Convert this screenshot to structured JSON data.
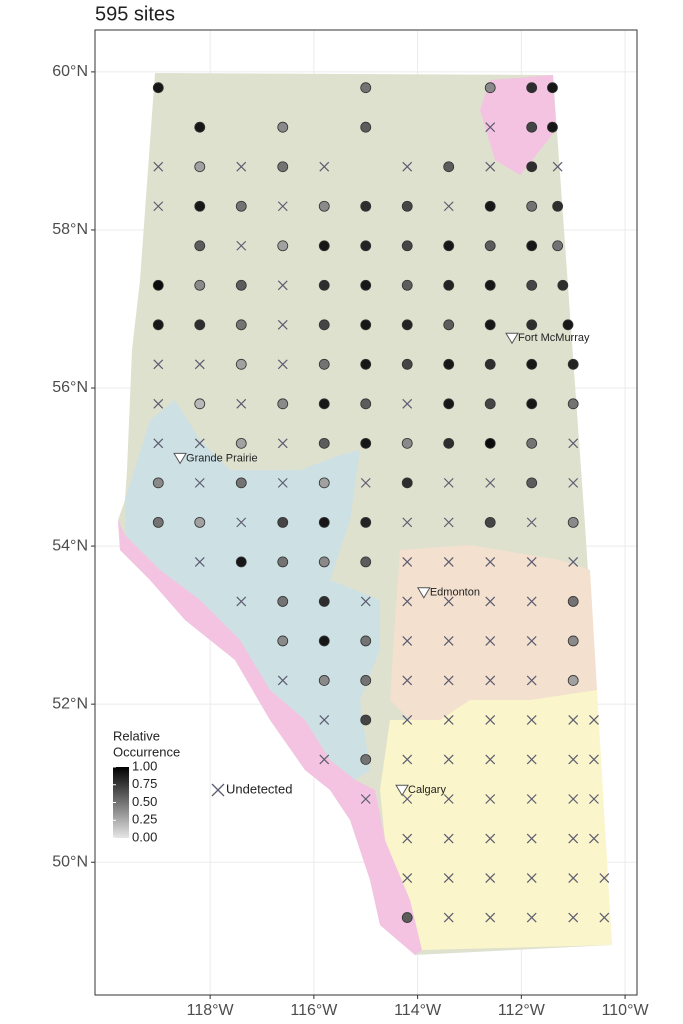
{
  "chart_data": {
    "type": "map",
    "title": "595 sites",
    "xlim": [
      -120.22,
      -109.77
    ],
    "ylim": [
      48.32,
      60.53
    ],
    "xticks": [
      {
        "value": -118,
        "label": "118°W"
      },
      {
        "value": -116,
        "label": "116°W"
      },
      {
        "value": -114,
        "label": "114°W"
      },
      {
        "value": -112,
        "label": "112°W"
      },
      {
        "value": -110,
        "label": "110°W"
      }
    ],
    "yticks": [
      {
        "value": 50,
        "label": "50°N"
      },
      {
        "value": 52,
        "label": "52°N"
      },
      {
        "value": 54,
        "label": "54°N"
      },
      {
        "value": 56,
        "label": "56°N"
      },
      {
        "value": 58,
        "label": "58°N"
      },
      {
        "value": 60,
        "label": "60°N"
      }
    ],
    "grid": true,
    "legend": {
      "title": [
        "Relative",
        "Occurrence"
      ],
      "ticks": [
        {
          "value": 1,
          "label": "1.00"
        },
        {
          "value": 0.75,
          "label": "0.75"
        },
        {
          "value": 0.5,
          "label": "0.50"
        },
        {
          "value": 0.25,
          "label": "0.25"
        },
        {
          "value": 0,
          "label": "0.00"
        }
      ],
      "colors": [
        "#e6e6e6",
        "#000000"
      ]
    },
    "detected": {
      "lon": [
        -119.0,
        -115.0,
        -112.6,
        -111.8,
        -111.4,
        -118.2,
        -116.6,
        -115.0,
        -111.8,
        -111.4,
        -118.2,
        -116.6,
        -113.4,
        -111.8,
        -118.2,
        -117.4,
        -115.8,
        -115.0,
        -114.2,
        -112.6,
        -111.8,
        -111.3,
        -118.2,
        -116.6,
        -115.8,
        -115.0,
        -114.2,
        -113.4,
        -112.6,
        -111.8,
        -111.3,
        -119.0,
        -118.2,
        -117.4,
        -115.8,
        -115.0,
        -114.2,
        -113.4,
        -112.6,
        -111.8,
        -111.2,
        -119.0,
        -118.2,
        -117.4,
        -115.8,
        -115.0,
        -114.2,
        -113.4,
        -112.6,
        -111.8,
        -111.1,
        -117.4,
        -115.8,
        -115.0,
        -114.2,
        -113.4,
        -112.6,
        -111.8,
        -111.0,
        -118.2,
        -116.6,
        -115.8,
        -115.0,
        -113.4,
        -112.6,
        -111.8,
        -111.0,
        -117.4,
        -115.8,
        -115.0,
        -114.2,
        -113.4,
        -112.6,
        -111.8,
        -119.0,
        -117.4,
        -115.8,
        -114.2,
        -111.8,
        -119.0,
        -118.2,
        -116.6,
        -115.8,
        -115.0,
        -112.6,
        -111.0,
        -117.4,
        -116.6,
        -115.8,
        -115.0,
        -116.6,
        -115.8,
        -111.0,
        -116.6,
        -115.8,
        -115.0,
        -111.0,
        -115.8,
        -115.0,
        -111.0,
        -115.0,
        -115.0,
        -114.2
      ],
      "lat": [
        59.8,
        59.8,
        59.8,
        59.8,
        59.8,
        59.3,
        59.3,
        59.3,
        59.3,
        59.3,
        58.8,
        58.8,
        58.8,
        58.8,
        58.3,
        58.3,
        58.3,
        58.3,
        58.3,
        58.3,
        58.3,
        58.3,
        57.8,
        57.8,
        57.8,
        57.8,
        57.8,
        57.8,
        57.8,
        57.8,
        57.8,
        57.3,
        57.3,
        57.3,
        57.3,
        57.3,
        57.3,
        57.3,
        57.3,
        57.3,
        57.3,
        56.8,
        56.8,
        56.8,
        56.8,
        56.8,
        56.8,
        56.8,
        56.8,
        56.8,
        56.8,
        56.3,
        56.3,
        56.3,
        56.3,
        56.3,
        56.3,
        56.3,
        56.3,
        55.8,
        55.8,
        55.8,
        55.8,
        55.8,
        55.8,
        55.8,
        55.8,
        55.3,
        55.3,
        55.3,
        55.3,
        55.3,
        55.3,
        55.3,
        54.8,
        54.8,
        54.8,
        54.8,
        54.8,
        54.3,
        54.3,
        54.3,
        54.3,
        54.3,
        54.3,
        54.3,
        53.8,
        53.8,
        53.8,
        53.8,
        53.3,
        53.3,
        53.3,
        52.8,
        52.8,
        52.8,
        52.8,
        52.3,
        52.3,
        52.3,
        51.8,
        51.3,
        49.3
      ],
      "values": [
        0.9,
        0.5,
        0.4,
        0.8,
        0.9,
        0.9,
        0.4,
        0.6,
        0.7,
        0.9,
        0.3,
        0.5,
        0.6,
        0.8,
        0.9,
        0.5,
        0.4,
        0.8,
        0.7,
        0.9,
        0.5,
        0.8,
        0.6,
        0.3,
        0.9,
        0.85,
        0.7,
        0.9,
        0.6,
        0.9,
        0.5,
        0.95,
        0.4,
        0.6,
        0.8,
        0.9,
        0.6,
        0.85,
        0.9,
        0.7,
        0.8,
        0.9,
        0.8,
        0.5,
        0.7,
        0.9,
        0.85,
        0.6,
        0.9,
        0.8,
        0.9,
        0.3,
        0.5,
        0.9,
        0.7,
        0.9,
        0.8,
        0.9,
        0.85,
        0.2,
        0.4,
        0.9,
        0.6,
        0.9,
        0.7,
        0.9,
        0.5,
        0.3,
        0.6,
        0.9,
        0.4,
        0.8,
        0.95,
        0.5,
        0.4,
        0.5,
        0.3,
        0.8,
        0.6,
        0.5,
        0.3,
        0.7,
        0.9,
        0.85,
        0.7,
        0.4,
        0.9,
        0.5,
        0.4,
        0.6,
        0.5,
        0.8,
        0.5,
        0.4,
        0.9,
        0.5,
        0.4,
        0.4,
        0.5,
        0.3,
        0.7,
        0.5,
        0.6
      ]
    },
    "undetected": {
      "name": "Undetected",
      "color": "#5c5c70",
      "lon": [
        -112.6,
        -119.0,
        -117.4,
        -115.8,
        -114.2,
        -112.6,
        -111.3,
        -119.0,
        -116.6,
        -113.4,
        -117.4,
        -116.6,
        -116.6,
        -119.0,
        -118.2,
        -116.6,
        -119.0,
        -117.4,
        -114.2,
        -119.0,
        -118.2,
        -116.6,
        -111.0,
        -118.2,
        -116.6,
        -115.0,
        -113.4,
        -112.6,
        -111.0,
        -117.4,
        -114.2,
        -113.4,
        -111.8,
        -118.2,
        -114.2,
        -113.4,
        -112.6,
        -111.8,
        -111.0,
        -117.4,
        -115.0,
        -114.2,
        -113.4,
        -112.6,
        -111.8,
        -114.2,
        -113.4,
        -112.6,
        -111.8,
        -116.6,
        -114.2,
        -113.4,
        -112.6,
        -111.8,
        -115.8,
        -114.2,
        -113.4,
        -112.6,
        -111.8,
        -111.0,
        -110.6,
        -115.8,
        -114.2,
        -113.4,
        -112.6,
        -111.8,
        -111.0,
        -110.6,
        -115.0,
        -114.2,
        -113.4,
        -112.6,
        -111.8,
        -111.0,
        -110.6,
        -114.2,
        -113.4,
        -112.6,
        -111.8,
        -111.0,
        -110.6,
        -114.2,
        -113.4,
        -112.6,
        -111.8,
        -111.0,
        -110.4,
        -113.4,
        -112.6,
        -111.8,
        -111.0,
        -110.4
      ],
      "lat": [
        59.3,
        58.8,
        58.8,
        58.8,
        58.8,
        58.8,
        58.8,
        58.3,
        58.3,
        58.3,
        57.8,
        57.3,
        56.8,
        56.3,
        56.3,
        56.3,
        55.8,
        55.8,
        55.8,
        55.3,
        55.3,
        55.3,
        55.3,
        54.8,
        54.8,
        54.8,
        54.8,
        54.8,
        54.8,
        54.3,
        54.3,
        54.3,
        54.3,
        53.8,
        53.8,
        53.8,
        53.8,
        53.8,
        53.8,
        53.3,
        53.3,
        53.3,
        53.3,
        53.3,
        53.3,
        52.8,
        52.8,
        52.8,
        52.8,
        52.3,
        52.3,
        52.3,
        52.3,
        52.3,
        51.8,
        51.8,
        51.8,
        51.8,
        51.8,
        51.8,
        51.8,
        51.3,
        51.3,
        51.3,
        51.3,
        51.3,
        51.3,
        51.3,
        50.8,
        50.8,
        50.8,
        50.8,
        50.8,
        50.8,
        50.8,
        50.3,
        50.3,
        50.3,
        50.3,
        50.3,
        50.3,
        49.8,
        49.8,
        49.8,
        49.8,
        49.8,
        49.8,
        49.3,
        49.3,
        49.3,
        49.3,
        49.3
      ]
    },
    "cities": {
      "names": [
        "Fort McMurray",
        "Grande Prairie",
        "Edmonton",
        "Calgary"
      ],
      "lon": [
        -112.18,
        -118.58,
        -113.88,
        -114.3
      ],
      "lat": [
        56.63,
        55.11,
        53.41,
        50.91
      ]
    }
  }
}
